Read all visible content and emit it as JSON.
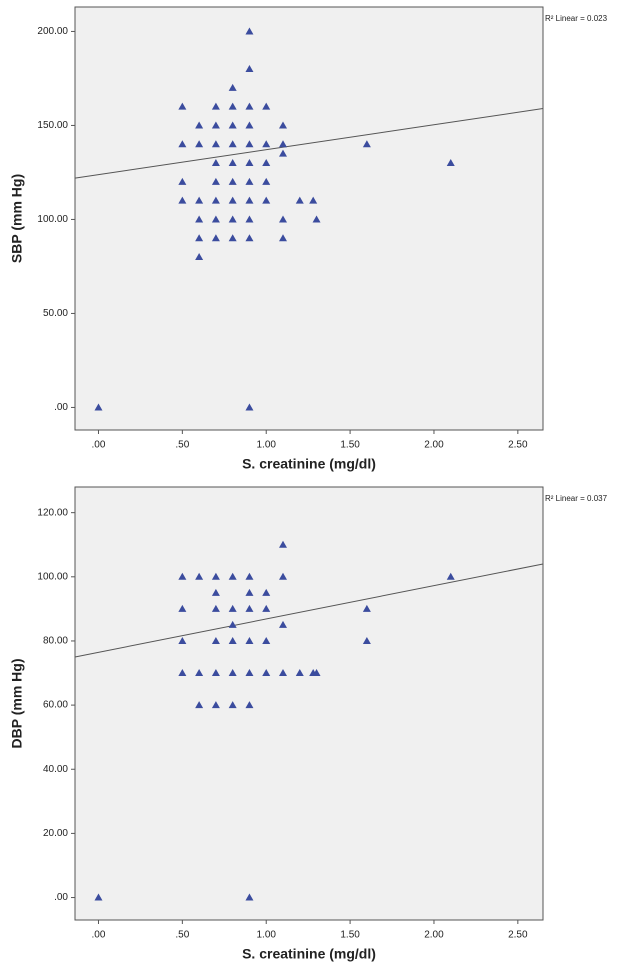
{
  "chart_data": [
    {
      "type": "scatter",
      "x_label": "S. creatinine (mg/dl)",
      "y_label": "SBP (mm Hg)",
      "annotation": "R² Linear = 0.023",
      "color": "#3b4c9e",
      "xlim": [
        -0.14,
        2.65
      ],
      "ylim": [
        -12,
        213
      ],
      "xticks": [
        {
          "value": 0,
          "label": ".00"
        },
        {
          "value": 0.5,
          "label": ".50"
        },
        {
          "value": 1,
          "label": "1.00"
        },
        {
          "value": 1.5,
          "label": "1.50"
        },
        {
          "value": 2,
          "label": "2.00"
        },
        {
          "value": 2.5,
          "label": "2.50"
        }
      ],
      "yticks": [
        {
          "value": 0,
          "label": ".00"
        },
        {
          "value": 50,
          "label": "50.00"
        },
        {
          "value": 100,
          "label": "100.00"
        },
        {
          "value": 150,
          "label": "150.00"
        },
        {
          "value": 200,
          "label": "200.00"
        }
      ],
      "x": [
        0,
        0.9,
        0.9,
        0.9,
        0.8,
        0.5,
        0.7,
        0.8,
        0.9,
        1.0,
        0.6,
        0.7,
        0.8,
        0.9,
        1.1,
        0.5,
        0.6,
        0.7,
        0.8,
        0.9,
        1.0,
        1.1,
        1.6,
        1.1,
        0.7,
        0.8,
        0.9,
        1.0,
        2.1,
        0.7,
        0.8,
        0.9,
        1.0,
        0.5,
        0.5,
        0.6,
        0.7,
        0.8,
        0.9,
        1.0,
        1.2,
        1.28,
        0.6,
        0.7,
        0.8,
        0.9,
        1.1,
        1.3,
        0.6,
        0.7,
        0.8,
        0.9,
        1.1,
        0.6
      ],
      "y": [
        0,
        0,
        200,
        180,
        170,
        160,
        160,
        160,
        160,
        160,
        150,
        150,
        150,
        150,
        150,
        140,
        140,
        140,
        140,
        140,
        140,
        140,
        140,
        135,
        130,
        130,
        130,
        130,
        130,
        120,
        120,
        120,
        120,
        120,
        110,
        110,
        110,
        110,
        110,
        110,
        110,
        110,
        100,
        100,
        100,
        100,
        100,
        100,
        90,
        90,
        90,
        90,
        90,
        80
      ],
      "fit": {
        "x": [
          -0.14,
          2.65
        ],
        "y": [
          122,
          159
        ]
      }
    },
    {
      "type": "scatter",
      "x_label": "S. creatinine (mg/dl)",
      "y_label": "DBP (mm Hg)",
      "annotation": "R² Linear = 0.037",
      "color": "#3b4c9e",
      "xlim": [
        -0.14,
        2.65
      ],
      "ylim": [
        -7,
        128
      ],
      "xticks": [
        {
          "value": 0,
          "label": ".00"
        },
        {
          "value": 0.5,
          "label": ".50"
        },
        {
          "value": 1,
          "label": "1.00"
        },
        {
          "value": 1.5,
          "label": "1.50"
        },
        {
          "value": 2,
          "label": "2.00"
        },
        {
          "value": 2.5,
          "label": "2.50"
        }
      ],
      "yticks": [
        {
          "value": 0,
          "label": ".00"
        },
        {
          "value": 20,
          "label": "20.00"
        },
        {
          "value": 40,
          "label": "40.00"
        },
        {
          "value": 60,
          "label": "60.00"
        },
        {
          "value": 80,
          "label": "80.00"
        },
        {
          "value": 100,
          "label": "100.00"
        },
        {
          "value": 120,
          "label": "120.00"
        }
      ],
      "x": [
        0,
        0.9,
        1.1,
        0.5,
        0.6,
        0.7,
        0.8,
        0.9,
        1.1,
        2.1,
        0.7,
        0.9,
        1.0,
        0.5,
        0.7,
        0.8,
        0.9,
        1.0,
        1.6,
        0.8,
        1.1,
        0.5,
        0.7,
        0.8,
        0.9,
        1.0,
        1.6,
        0.5,
        0.6,
        0.7,
        0.8,
        0.9,
        1.0,
        1.1,
        1.2,
        1.28,
        1.3,
        0.6,
        0.7,
        0.8,
        0.9
      ],
      "y": [
        0,
        0,
        110,
        100,
        100,
        100,
        100,
        100,
        100,
        100,
        95,
        95,
        95,
        90,
        90,
        90,
        90,
        90,
        90,
        85,
        85,
        80,
        80,
        80,
        80,
        80,
        80,
        70,
        70,
        70,
        70,
        70,
        70,
        70,
        70,
        70,
        70,
        60,
        60,
        60,
        60
      ],
      "fit": {
        "x": [
          -0.14,
          2.65
        ],
        "y": [
          75,
          104
        ]
      }
    }
  ]
}
